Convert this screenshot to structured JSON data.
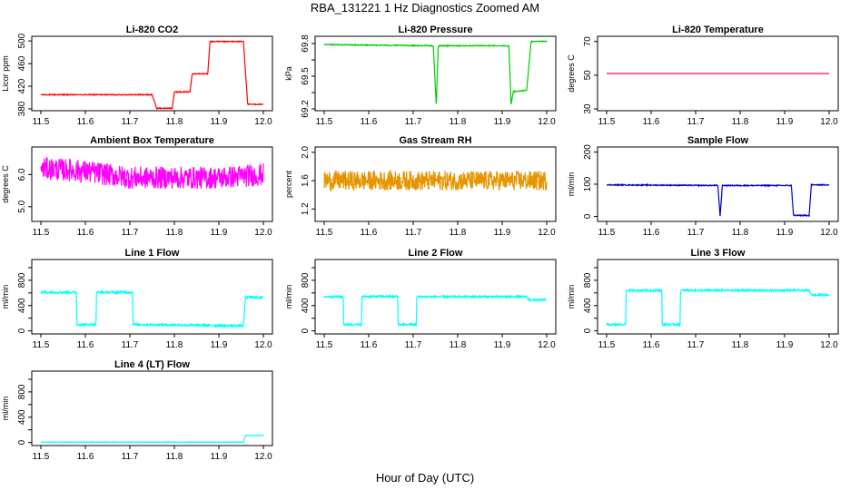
{
  "figure": {
    "title": "RBA_131221  1 Hz Diagnostics Zoomed AM",
    "xlabel": "Hour of Day (UTC)"
  },
  "chart_data": [
    {
      "type": "line",
      "title": "Li-820 CO2",
      "ylabel": "Licor ppm",
      "xlim": [
        11.5,
        12.0
      ],
      "ylim": [
        380,
        505
      ],
      "yticks": [
        380,
        420,
        460,
        500
      ],
      "color": "#ff0000",
      "noise": 0.8,
      "x": [
        11.5,
        11.75,
        11.76,
        11.795,
        11.8,
        11.835,
        11.84,
        11.875,
        11.88,
        11.955,
        11.965,
        12.0
      ],
      "y": [
        405,
        405,
        381,
        381,
        410,
        410,
        442,
        442,
        499,
        499,
        388,
        388
      ]
    },
    {
      "type": "line",
      "title": "Li-820 Pressure",
      "ylabel": "kPa",
      "xlim": [
        11.5,
        12.0
      ],
      "ylim": [
        69.2,
        69.85
      ],
      "yticks": [
        69.2,
        69.5,
        69.8
      ],
      "ytick_labels": [
        "69.2",
        "69.5",
        "69.8"
      ],
      "minor_ticks": [
        69.35,
        69.65
      ],
      "color": "#00cc00",
      "noise": 0.004,
      "x": [
        11.5,
        11.745,
        11.752,
        11.756,
        11.76,
        11.915,
        11.92,
        11.925,
        11.93,
        11.955,
        11.965,
        12.0
      ],
      "y": [
        69.79,
        69.78,
        69.22,
        69.77,
        69.78,
        69.78,
        69.24,
        69.36,
        69.36,
        69.37,
        69.82,
        69.82
      ]
    },
    {
      "type": "line",
      "title": "Li-820 Temperature",
      "ylabel": "degrees C",
      "xlim": [
        11.5,
        12.0
      ],
      "ylim": [
        30,
        72
      ],
      "yticks": [
        30,
        50,
        70
      ],
      "color": "#ff0066",
      "noise": 0,
      "x": [
        11.5,
        12.0
      ],
      "y": [
        51,
        51
      ]
    },
    {
      "type": "line",
      "title": "Ambient Box Temperature",
      "ylabel": "degrees C",
      "xlim": [
        11.5,
        12.0
      ],
      "ylim": [
        4.6,
        6.8
      ],
      "yticks": [
        5.0,
        6.0
      ],
      "ytick_labels": [
        "5.0",
        "6.0"
      ],
      "color": "#ff00ff",
      "noise": 0.35,
      "x": [
        11.5,
        11.6,
        11.7,
        11.8,
        11.9,
        12.0
      ],
      "y": [
        6.2,
        6.1,
        5.9,
        5.9,
        5.9,
        6.0
      ]
    },
    {
      "type": "line",
      "title": "Gas Stream RH",
      "ylabel": "percent",
      "xlim": [
        11.5,
        12.0
      ],
      "ylim": [
        1.05,
        2.05
      ],
      "yticks": [
        1.2,
        1.6,
        2.0
      ],
      "ytick_labels": [
        "1.2",
        "1.6",
        "2.0"
      ],
      "color": "#e69500",
      "noise": 0.14,
      "x": [
        11.5,
        12.0
      ],
      "y": [
        1.6,
        1.6
      ]
    },
    {
      "type": "line",
      "title": "Sample Flow",
      "ylabel": "ml/min",
      "xlim": [
        11.5,
        12.0
      ],
      "ylim": [
        -10,
        210
      ],
      "yticks": [
        0,
        100,
        200
      ],
      "color": "#0000cc",
      "noise": 1.5,
      "x": [
        11.5,
        11.75,
        11.755,
        11.76,
        11.915,
        11.92,
        11.955,
        11.96,
        12.0
      ],
      "y": [
        98,
        96,
        2,
        96,
        96,
        3,
        3,
        98,
        98
      ]
    },
    {
      "type": "line",
      "title": "Line 1 Flow",
      "ylabel": "ml/min",
      "xlim": [
        11.5,
        12.0
      ],
      "ylim": [
        -20,
        1100
      ],
      "yticks": [
        0,
        400,
        800
      ],
      "minor_ticks": [
        200,
        600,
        1000
      ],
      "color": "#00ffff",
      "noise": 18,
      "x": [
        11.5,
        11.58,
        11.581,
        11.624,
        11.625,
        11.706,
        11.707,
        11.955,
        11.96,
        12.0
      ],
      "y": [
        610,
        610,
        100,
        100,
        610,
        610,
        100,
        80,
        530,
        530
      ]
    },
    {
      "type": "line",
      "title": "Line 2 Flow",
      "ylabel": "ml/min",
      "xlim": [
        11.5,
        12.0
      ],
      "ylim": [
        -20,
        1100
      ],
      "yticks": [
        0,
        400,
        800
      ],
      "minor_ticks": [
        200,
        600,
        1000
      ],
      "color": "#00ffff",
      "noise": 15,
      "x": [
        11.5,
        11.543,
        11.544,
        11.584,
        11.585,
        11.665,
        11.666,
        11.707,
        11.708,
        11.955,
        11.96,
        12.0
      ],
      "y": [
        540,
        540,
        100,
        100,
        545,
        545,
        100,
        100,
        540,
        540,
        490,
        490
      ]
    },
    {
      "type": "line",
      "title": "Line 3 Flow",
      "ylabel": "ml/min",
      "xlim": [
        11.5,
        12.0
      ],
      "ylim": [
        -20,
        1100
      ],
      "yticks": [
        0,
        400,
        800
      ],
      "minor_ticks": [
        200,
        600,
        1000
      ],
      "color": "#00ffff",
      "noise": 15,
      "x": [
        11.5,
        11.543,
        11.544,
        11.624,
        11.625,
        11.665,
        11.666,
        11.955,
        11.96,
        12.0
      ],
      "y": [
        100,
        100,
        640,
        640,
        100,
        100,
        640,
        640,
        570,
        570
      ]
    },
    {
      "type": "line",
      "title": "Line 4 (LT) Flow",
      "ylabel": "ml/min",
      "xlim": [
        11.5,
        12.0
      ],
      "ylim": [
        -20,
        1100
      ],
      "yticks": [
        0,
        400,
        800
      ],
      "minor_ticks": [
        200,
        600,
        1000
      ],
      "color": "#00ffff",
      "noise": 4,
      "x": [
        11.5,
        11.955,
        11.96,
        12.0
      ],
      "y": [
        5,
        5,
        110,
        110
      ]
    }
  ],
  "x_ticks": [
    "11.5",
    "11.6",
    "11.7",
    "11.8",
    "11.9",
    "12.0"
  ]
}
